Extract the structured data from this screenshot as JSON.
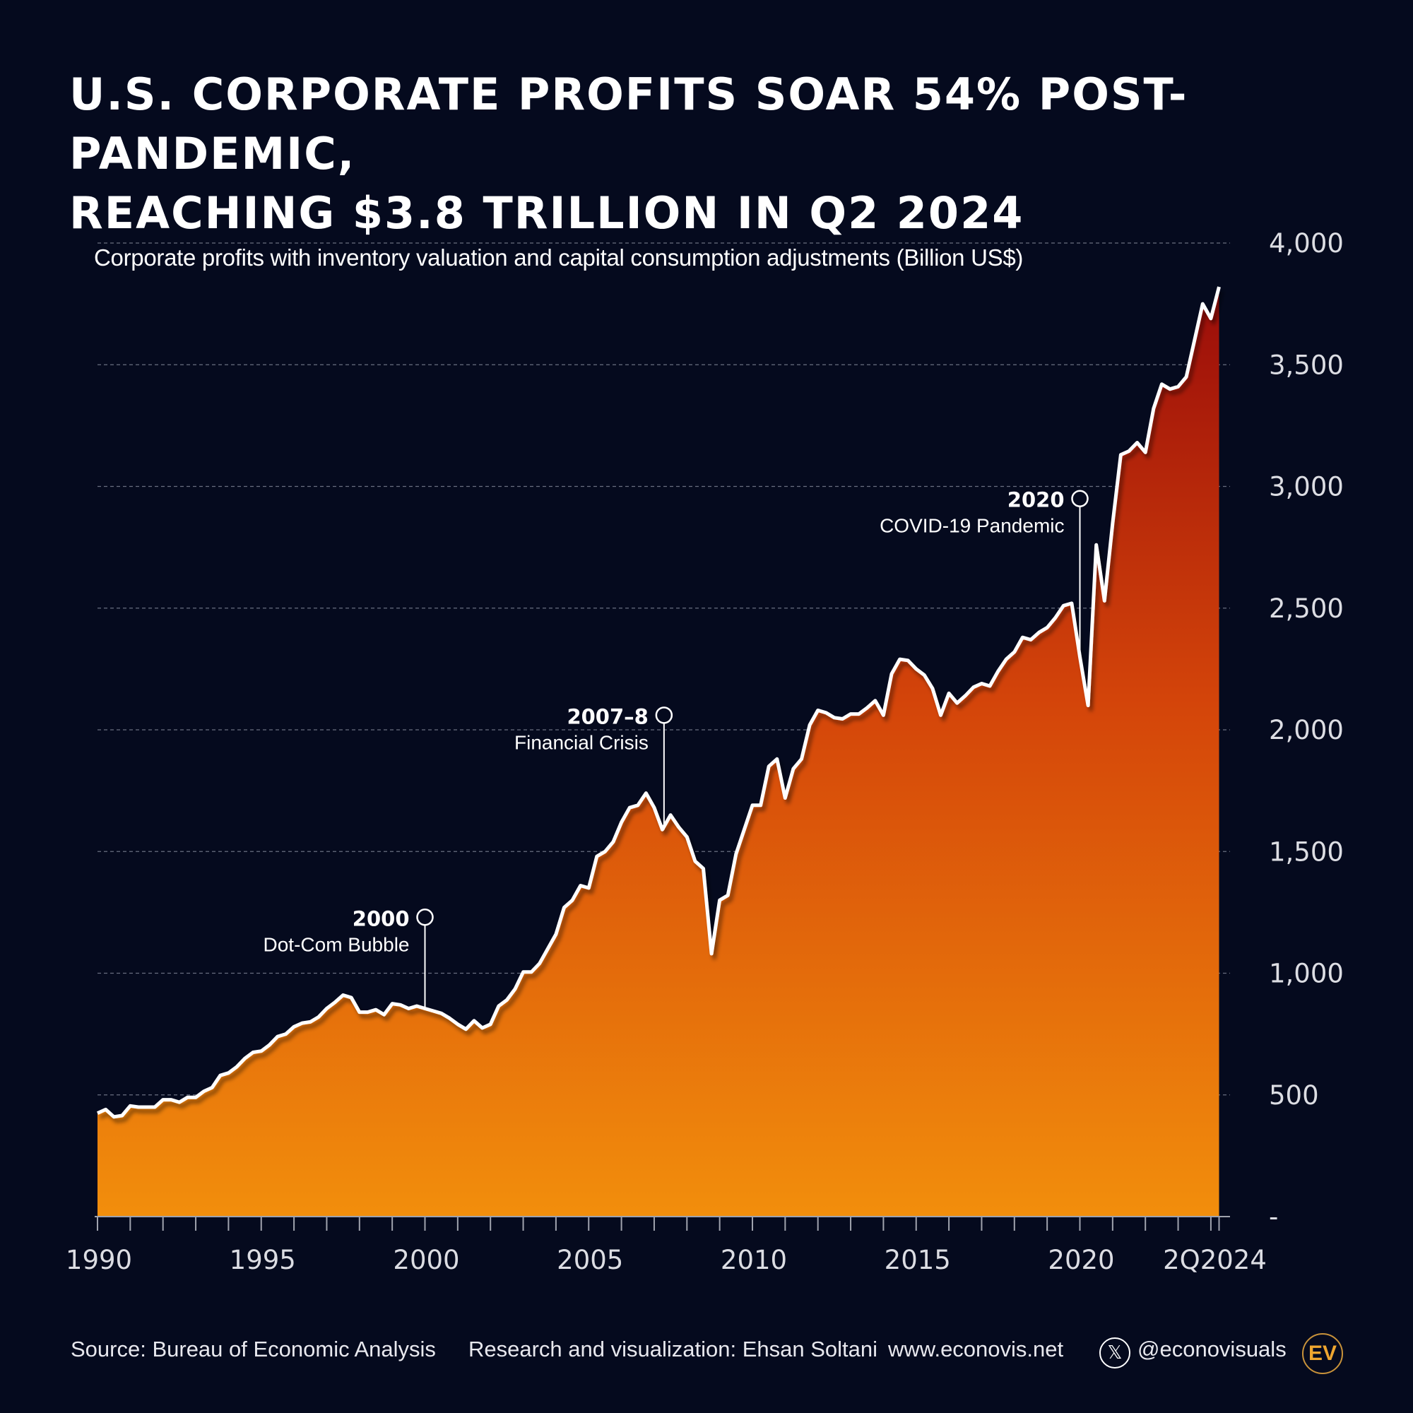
{
  "title_line1": "U.S. Corporate Profits Soar 54% Post-Pandemic,",
  "title_line2": "Reaching $3.8 Trillion in Q2 2024",
  "chart_data": {
    "type": "area",
    "title": "U.S. Corporate Profits Soar 54% Post-Pandemic, Reaching $3.8 Trillion in Q2 2024",
    "ylabel": "Corporate profits with inventory valuation and capital consumption adjustments (Billion US$)",
    "ylim": [
      0,
      4000
    ],
    "xlim": [
      "1990Q1",
      "2024Q2"
    ],
    "grid": true,
    "y_ticks": [
      0,
      500,
      1000,
      1500,
      2000,
      2500,
      3000,
      3500,
      4000
    ],
    "y_tick_labels": [
      "-",
      "500",
      "1,000",
      "1,500",
      "2,000",
      "2,500",
      "3,000",
      "3,500",
      "4,000"
    ],
    "x_tick_labels": [
      "1990",
      "1995",
      "2000",
      "2005",
      "2010",
      "2015",
      "2020",
      "2Q2024"
    ],
    "colors": {
      "top": "#9a0c0a",
      "bottom": "#f28e0c",
      "line": "#ffffff",
      "background": "#050a1e"
    },
    "series": [
      {
        "year": 1990,
        "values": [
          425,
          440,
          410,
          415
        ]
      },
      {
        "year": 1991,
        "values": [
          455,
          450,
          450,
          450
        ]
      },
      {
        "year": 1992,
        "values": [
          480,
          480,
          470,
          490
        ]
      },
      {
        "year": 1993,
        "values": [
          490,
          515,
          530,
          580
        ]
      },
      {
        "year": 1994,
        "values": [
          590,
          615,
          650,
          675
        ]
      },
      {
        "year": 1995,
        "values": [
          680,
          705,
          740,
          750
        ]
      },
      {
        "year": 1996,
        "values": [
          780,
          795,
          800,
          820
        ]
      },
      {
        "year": 1997,
        "values": [
          855,
          880,
          910,
          900
        ]
      },
      {
        "year": 1998,
        "values": [
          840,
          840,
          850,
          830
        ]
      },
      {
        "year": 1999,
        "values": [
          875,
          870,
          855,
          865
        ]
      },
      {
        "year": 2000,
        "values": [
          855,
          845,
          835,
          815
        ]
      },
      {
        "year": 2001,
        "values": [
          790,
          770,
          805,
          775
        ]
      },
      {
        "year": 2002,
        "values": [
          790,
          865,
          890,
          935
        ]
      },
      {
        "year": 2003,
        "values": [
          1005,
          1005,
          1040,
          1100
        ]
      },
      {
        "year": 2004,
        "values": [
          1160,
          1270,
          1300,
          1360
        ]
      },
      {
        "year": 2005,
        "values": [
          1350,
          1480,
          1500,
          1540
        ]
      },
      {
        "year": 2006,
        "values": [
          1620,
          1680,
          1690,
          1740
        ]
      },
      {
        "year": 2007,
        "values": [
          1680,
          1590,
          1650,
          1600
        ]
      },
      {
        "year": 2008,
        "values": [
          1560,
          1460,
          1430,
          1080
        ]
      },
      {
        "year": 2009,
        "values": [
          1300,
          1320,
          1490,
          1590
        ]
      },
      {
        "year": 2010,
        "values": [
          1690,
          1690,
          1850,
          1880
        ]
      },
      {
        "year": 2011,
        "values": [
          1720,
          1840,
          1880,
          2020
        ]
      },
      {
        "year": 2012,
        "values": [
          2080,
          2070,
          2050,
          2045
        ]
      },
      {
        "year": 2013,
        "values": [
          2065,
          2065,
          2090,
          2120
        ]
      },
      {
        "year": 2014,
        "values": [
          2060,
          2230,
          2290,
          2285
        ]
      },
      {
        "year": 2015,
        "values": [
          2250,
          2225,
          2170,
          2060
        ]
      },
      {
        "year": 2016,
        "values": [
          2150,
          2110,
          2140,
          2175
        ]
      },
      {
        "year": 2017,
        "values": [
          2190,
          2180,
          2240,
          2290
        ]
      },
      {
        "year": 2018,
        "values": [
          2320,
          2380,
          2370,
          2400
        ]
      },
      {
        "year": 2019,
        "values": [
          2420,
          2460,
          2510,
          2520
        ]
      },
      {
        "year": 2020,
        "values": [
          2300,
          2100,
          2760,
          2530
        ]
      },
      {
        "year": 2021,
        "values": [
          2850,
          3130,
          3145,
          3180
        ]
      },
      {
        "year": 2022,
        "values": [
          3140,
          3320,
          3420,
          3400
        ]
      },
      {
        "year": 2023,
        "values": [
          3410,
          3450,
          3600,
          3750
        ]
      },
      {
        "year": 2024,
        "values": [
          3690,
          3820
        ]
      }
    ],
    "annotations": [
      {
        "label": "2000",
        "text": "Dot-Com Bubble",
        "x": 2000.0,
        "y": 1230
      },
      {
        "label": "2007–8",
        "text": "Financial Crisis",
        "x": 2007.3,
        "y": 2060
      },
      {
        "label": "2020",
        "text": "COVID-19 Pandemic",
        "x": 2020.0,
        "y": 2950
      }
    ]
  },
  "footer": {
    "source": "Source: Bureau of Economic Analysis",
    "credit": "Research and visualization: Ehsan Soltani",
    "website": "www.econovis.net",
    "x_icon": "𝕏",
    "handle": "@econovisuals",
    "logo": "EV"
  }
}
